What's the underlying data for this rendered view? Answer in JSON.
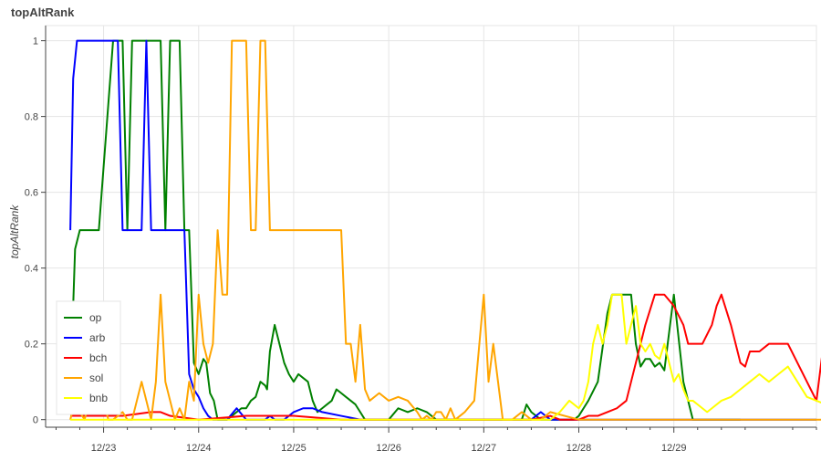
{
  "chart_data": {
    "type": "line",
    "title": "topAltRank",
    "xlabel": "",
    "ylabel": "topAltRank",
    "x_unit": "days",
    "xlim": [
      "12/22 09:20",
      "12/29 19:00"
    ],
    "ylim": [
      -0.02,
      1.04
    ],
    "yticks": [
      0,
      0.2,
      0.4,
      0.6,
      0.8,
      1
    ],
    "ytick_labels": [
      "0",
      "0.2",
      "0.4",
      "0.6",
      "0.8",
      "1"
    ],
    "xticks": [
      "12/23",
      "12/24",
      "12/25",
      "12/26",
      "12/27",
      "12/28",
      "12/29"
    ],
    "grid": true,
    "legend_position": "bottom-left",
    "series": [
      {
        "name": "op",
        "color": "#008000",
        "x": [
          0.68,
          0.7,
          0.75,
          0.8,
          0.88,
          0.95,
          1.1,
          1.2,
          1.25,
          1.3,
          1.35,
          1.4,
          1.45,
          1.5,
          1.55,
          1.6,
          1.65,
          1.7,
          1.75,
          1.8,
          1.85,
          1.9,
          1.95,
          2.0,
          2.05,
          2.08,
          2.12,
          2.16,
          2.2,
          2.25,
          2.3,
          2.35,
          2.4,
          2.45,
          2.5,
          2.55,
          2.6,
          2.65,
          2.7,
          2.72,
          2.75,
          2.8,
          2.85,
          2.9,
          2.95,
          3.0,
          3.05,
          3.1,
          3.15,
          3.2,
          3.25,
          3.3,
          3.35,
          3.4,
          3.45,
          3.5,
          3.55,
          3.6,
          3.65,
          3.7,
          3.75,
          4.0,
          4.1,
          4.2,
          4.3,
          4.4,
          4.5,
          5.0,
          5.4,
          5.45,
          5.5,
          5.6,
          5.7,
          5.8,
          5.9,
          5.95,
          6.0,
          6.05,
          6.1,
          6.2,
          6.3,
          6.35,
          6.4,
          6.45,
          6.5,
          6.55,
          6.6,
          6.65,
          6.7,
          6.75,
          6.8,
          6.85,
          6.9,
          7.0,
          7.1,
          7.2,
          7.3,
          7.4,
          7.5,
          7.6,
          7.7
        ],
        "y": [
          0.3,
          0.45,
          0.5,
          0.5,
          0.5,
          0.5,
          1.0,
          1.0,
          0.5,
          1.0,
          1.0,
          1.0,
          1.0,
          1.0,
          1.0,
          1.0,
          0.5,
          1.0,
          1.0,
          1.0,
          0.5,
          0.5,
          0.15,
          0.12,
          0.16,
          0.15,
          0.07,
          0.05,
          0.0,
          0.0,
          0.0,
          0.01,
          0.02,
          0.03,
          0.03,
          0.05,
          0.06,
          0.1,
          0.09,
          0.08,
          0.18,
          0.25,
          0.2,
          0.15,
          0.12,
          0.1,
          0.12,
          0.11,
          0.1,
          0.05,
          0.02,
          0.03,
          0.04,
          0.05,
          0.08,
          0.07,
          0.06,
          0.05,
          0.04,
          0.02,
          0.0,
          0.0,
          0.03,
          0.02,
          0.03,
          0.02,
          0.0,
          0.0,
          0.0,
          0.04,
          0.02,
          0.0,
          0.0,
          0.0,
          0.0,
          0.0,
          0.01,
          0.03,
          0.05,
          0.1,
          0.28,
          0.33,
          0.33,
          0.33,
          0.33,
          0.33,
          0.2,
          0.14,
          0.16,
          0.16,
          0.14,
          0.15,
          0.13,
          0.33,
          0.1,
          0.0,
          0.0,
          0.0,
          0.0,
          0.0,
          0.0
        ]
      },
      {
        "name": "arb",
        "color": "#0000ff",
        "x": [
          0.65,
          0.68,
          0.72,
          0.75,
          0.9,
          1.0,
          1.05,
          1.1,
          1.15,
          1.2,
          1.25,
          1.3,
          1.35,
          1.4,
          1.45,
          1.5,
          1.55,
          1.6,
          1.65,
          1.7,
          1.75,
          1.8,
          1.85,
          1.9,
          1.95,
          2.0,
          2.05,
          2.1,
          2.15,
          2.2,
          2.25,
          2.3,
          2.4,
          2.5,
          2.6,
          2.65,
          2.7,
          2.75,
          2.8,
          2.85,
          2.9,
          3.0,
          3.1,
          3.2,
          3.3,
          3.5,
          3.7,
          4.0,
          4.5,
          4.6,
          5.0,
          5.4,
          5.5,
          5.6,
          5.7,
          5.8,
          6.5,
          6.6,
          6.7,
          6.8,
          6.9,
          6.95,
          7.0,
          7.2,
          7.35,
          7.4,
          7.42,
          7.45,
          7.5,
          7.6,
          7.7,
          7.8,
          7.9,
          8.0,
          8.05,
          8.1,
          8.15,
          8.2,
          8.3,
          8.4,
          8.5
        ],
        "y": [
          0.5,
          0.9,
          1.0,
          1.0,
          1.0,
          1.0,
          1.0,
          1.0,
          1.0,
          0.5,
          0.5,
          0.5,
          0.5,
          0.5,
          1.0,
          0.5,
          0.5,
          0.5,
          0.5,
          0.5,
          0.5,
          0.5,
          0.5,
          0.12,
          0.08,
          0.06,
          0.03,
          0.01,
          0.0,
          0.0,
          0.0,
          0.0,
          0.03,
          0.0,
          0.0,
          0.0,
          0.0,
          0.01,
          0.0,
          0.0,
          0.0,
          0.02,
          0.03,
          0.03,
          0.02,
          0.01,
          0.0,
          0.0,
          0.0,
          0.0,
          0.0,
          0.0,
          0.0,
          0.02,
          0.0,
          0.0,
          0.0,
          0.0,
          0.0,
          0.0,
          0.0,
          0.0,
          0.0,
          0.0,
          0.0,
          0.0,
          0.0,
          0.0,
          0.0,
          0.0,
          0.0,
          0.0,
          0.0,
          0.0,
          0.0,
          0.0,
          0.0,
          0.0,
          0.0,
          0.0,
          0.0
        ]
      },
      {
        "name": "bch",
        "color": "#ff0000",
        "x": [
          0.65,
          1.0,
          1.2,
          1.35,
          1.5,
          1.6,
          1.7,
          2.0,
          2.5,
          3.0,
          3.5,
          4.0,
          4.5,
          5.0,
          5.5,
          5.7,
          5.8,
          5.9,
          6.0,
          6.1,
          6.2,
          6.3,
          6.4,
          6.5,
          6.55,
          6.6,
          6.65,
          6.7,
          6.8,
          6.9,
          7.0,
          7.1,
          7.15,
          7.2,
          7.3,
          7.4,
          7.45,
          7.5,
          7.6,
          7.7,
          7.75,
          7.8,
          7.9,
          8.0,
          8.1,
          8.2,
          8.3,
          8.4,
          8.5,
          8.6,
          8.7,
          8.8,
          8.9,
          9.0
        ],
        "y": [
          0.01,
          0.01,
          0.01,
          0.015,
          0.02,
          0.02,
          0.01,
          0.0,
          0.01,
          0.01,
          0.0,
          0.0,
          0.0,
          0.0,
          0.0,
          0.01,
          0.0,
          0.0,
          0.0,
          0.01,
          0.01,
          0.02,
          0.03,
          0.05,
          0.1,
          0.15,
          0.2,
          0.25,
          0.33,
          0.33,
          0.3,
          0.25,
          0.2,
          0.2,
          0.2,
          0.25,
          0.3,
          0.33,
          0.25,
          0.15,
          0.14,
          0.18,
          0.18,
          0.2,
          0.2,
          0.2,
          0.15,
          0.1,
          0.05,
          0.25,
          0.1,
          0.05,
          0.0,
          0.0
        ]
      },
      {
        "name": "sol",
        "color": "#ffa500",
        "x": [
          0.65,
          0.7,
          0.75,
          0.8,
          0.85,
          0.9,
          0.95,
          1.0,
          1.05,
          1.1,
          1.15,
          1.2,
          1.25,
          1.3,
          1.35,
          1.4,
          1.45,
          1.5,
          1.55,
          1.6,
          1.65,
          1.7,
          1.75,
          1.8,
          1.85,
          1.9,
          1.95,
          2.0,
          2.05,
          2.1,
          2.15,
          2.2,
          2.25,
          2.3,
          2.35,
          2.4,
          2.45,
          2.5,
          2.55,
          2.6,
          2.65,
          2.7,
          2.75,
          2.8,
          2.85,
          2.9,
          2.95,
          3.0,
          3.05,
          3.1,
          3.2,
          3.3,
          3.4,
          3.5,
          3.55,
          3.6,
          3.65,
          3.7,
          3.75,
          3.8,
          3.9,
          4.0,
          4.1,
          4.2,
          4.3,
          4.35,
          4.4,
          4.45,
          4.5,
          4.55,
          4.6,
          4.65,
          4.7,
          4.8,
          4.9,
          5.0,
          5.05,
          5.1,
          5.15,
          5.2,
          5.3,
          5.4,
          5.5,
          5.6,
          5.7,
          6.0,
          6.5,
          7.0,
          7.5,
          8.0,
          8.05,
          8.1,
          8.15,
          8.2,
          8.25,
          8.3,
          8.35,
          8.4,
          8.45,
          8.5,
          8.55,
          8.6,
          8.65,
          8.7,
          8.75,
          8.8,
          8.85,
          8.9,
          8.95,
          9.0,
          9.05,
          9.1,
          9.15,
          9.2,
          9.25,
          9.3
        ],
        "y": [
          0.0,
          0.05,
          0.02,
          0.0,
          0.05,
          0.08,
          0.14,
          0.05,
          0.0,
          0.0,
          0.01,
          0.02,
          0.0,
          0.0,
          0.05,
          0.1,
          0.05,
          0.0,
          0.1,
          0.33,
          0.1,
          0.05,
          0.0,
          0.03,
          0.0,
          0.1,
          0.05,
          0.33,
          0.2,
          0.15,
          0.2,
          0.5,
          0.33,
          0.33,
          1.0,
          1.0,
          1.0,
          1.0,
          0.5,
          0.5,
          1.0,
          1.0,
          0.5,
          0.5,
          0.5,
          0.5,
          0.5,
          0.5,
          0.5,
          0.5,
          0.5,
          0.5,
          0.5,
          0.5,
          0.2,
          0.2,
          0.1,
          0.25,
          0.08,
          0.05,
          0.07,
          0.05,
          0.06,
          0.05,
          0.02,
          0.0,
          0.01,
          0.0,
          0.02,
          0.02,
          0.0,
          0.03,
          0.0,
          0.02,
          0.05,
          0.33,
          0.1,
          0.2,
          0.1,
          0.0,
          0.0,
          0.02,
          0.0,
          0.0,
          0.02,
          0.0,
          0.0,
          0.0,
          0.0,
          0.0,
          0.0,
          0.0,
          0.0,
          0.0,
          0.0,
          0.0,
          0.0,
          0.0,
          0.0,
          0.0,
          0.0,
          0.0,
          0.0,
          0.0,
          0.0,
          0.0,
          0.0,
          0.0,
          0.0,
          0.0,
          0.0,
          0.0,
          0.0,
          0.0,
          0.0,
          0.0
        ]
      },
      {
        "name": "bnb",
        "color": "#ffff00",
        "x": [
          0.65,
          1.0,
          1.5,
          2.0,
          2.5,
          3.0,
          3.5,
          4.0,
          4.5,
          5.0,
          5.5,
          5.7,
          5.8,
          5.9,
          6.0,
          6.05,
          6.1,
          6.15,
          6.2,
          6.25,
          6.3,
          6.35,
          6.4,
          6.45,
          6.5,
          6.55,
          6.6,
          6.65,
          6.7,
          6.75,
          6.8,
          6.85,
          6.9,
          6.95,
          7.0,
          7.05,
          7.1,
          7.15,
          7.2,
          7.3,
          7.35,
          7.4,
          7.5,
          7.6,
          7.7,
          7.8,
          7.9,
          8.0,
          8.1,
          8.2,
          8.3,
          8.4,
          8.5,
          8.6,
          8.7,
          8.8,
          8.9,
          9.0
        ],
        "y": [
          0.0,
          0.0,
          0.0,
          0.0,
          0.0,
          0.0,
          0.0,
          0.0,
          0.0,
          0.0,
          0.0,
          0.0,
          0.02,
          0.05,
          0.03,
          0.05,
          0.1,
          0.2,
          0.25,
          0.2,
          0.25,
          0.33,
          0.33,
          0.33,
          0.2,
          0.25,
          0.3,
          0.2,
          0.18,
          0.2,
          0.17,
          0.16,
          0.2,
          0.15,
          0.1,
          0.12,
          0.08,
          0.05,
          0.05,
          0.03,
          0.02,
          0.03,
          0.05,
          0.06,
          0.08,
          0.1,
          0.12,
          0.1,
          0.12,
          0.14,
          0.1,
          0.06,
          0.05,
          0.04,
          0.03,
          0.02,
          0.0,
          0.0
        ]
      }
    ]
  }
}
